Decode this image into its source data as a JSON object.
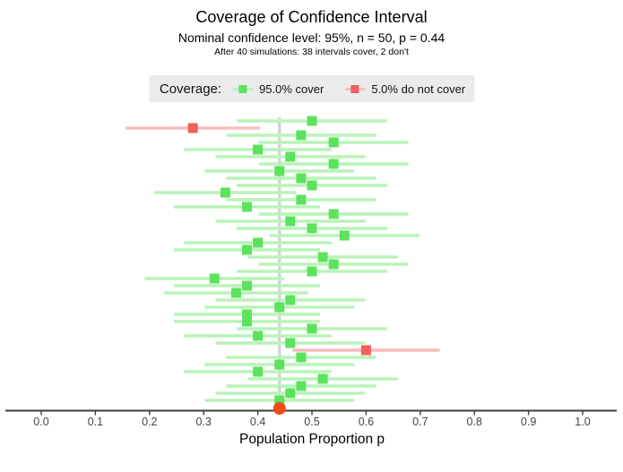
{
  "header": {
    "title": "Coverage of Confidence Interval",
    "subtitle": "Nominal confidence level: 95%, n = 50, p = 0.44",
    "note": "After 40 simulations: 38 intervals cover, 2 don't"
  },
  "legend": {
    "label": "Coverage:",
    "background": "#ebebeb",
    "items": [
      {
        "name": "cover",
        "label": "95.0% cover",
        "point_color": "#5ce25c",
        "line_color": "#b9f3b9"
      },
      {
        "name": "no-cover",
        "label": "5.0% do not cover",
        "point_color": "#f15f5f",
        "line_color": "#f8bcbc"
      }
    ]
  },
  "chart_data": {
    "type": "scatter",
    "description": "40 simulated 95% Wald confidence intervals for a proportion (n = 50, true p = 0.44); square = sample proportion, horizontal segment = confidence interval; 38 intervals cover the true p, 2 do not",
    "title": "Coverage of Confidence Interval",
    "xlabel": "Population Proportion p",
    "true_p": 0.44,
    "n": 50,
    "num_simulations": 40,
    "num_cover": 38,
    "num_miss": 2,
    "xlim": [
      -0.06,
      1.06
    ],
    "x_ticks": [
      0.0,
      0.1,
      0.2,
      0.3,
      0.4,
      0.5,
      0.6,
      0.7,
      0.8,
      0.9,
      1.0
    ],
    "x_tick_labels": [
      "0.0",
      "0.1",
      "0.2",
      "0.3",
      "0.4",
      "0.5",
      "0.6",
      "0.7",
      "0.8",
      "0.9",
      "1.0"
    ],
    "grid": false,
    "legend_position": "top-center",
    "intervals": [
      {
        "p_hat": 0.5,
        "lower": 0.361,
        "upper": 0.639,
        "cover": true
      },
      {
        "p_hat": 0.28,
        "lower": 0.156,
        "upper": 0.404,
        "cover": false
      },
      {
        "p_hat": 0.48,
        "lower": 0.342,
        "upper": 0.618,
        "cover": true
      },
      {
        "p_hat": 0.54,
        "lower": 0.402,
        "upper": 0.678,
        "cover": true
      },
      {
        "p_hat": 0.4,
        "lower": 0.264,
        "upper": 0.536,
        "cover": true
      },
      {
        "p_hat": 0.46,
        "lower": 0.322,
        "upper": 0.598,
        "cover": true
      },
      {
        "p_hat": 0.54,
        "lower": 0.402,
        "upper": 0.678,
        "cover": true
      },
      {
        "p_hat": 0.44,
        "lower": 0.302,
        "upper": 0.578,
        "cover": true
      },
      {
        "p_hat": 0.48,
        "lower": 0.342,
        "upper": 0.618,
        "cover": true
      },
      {
        "p_hat": 0.5,
        "lower": 0.361,
        "upper": 0.639,
        "cover": true
      },
      {
        "p_hat": 0.34,
        "lower": 0.209,
        "upper": 0.471,
        "cover": true
      },
      {
        "p_hat": 0.48,
        "lower": 0.342,
        "upper": 0.618,
        "cover": true
      },
      {
        "p_hat": 0.38,
        "lower": 0.245,
        "upper": 0.515,
        "cover": true
      },
      {
        "p_hat": 0.54,
        "lower": 0.402,
        "upper": 0.678,
        "cover": true
      },
      {
        "p_hat": 0.46,
        "lower": 0.322,
        "upper": 0.598,
        "cover": true
      },
      {
        "p_hat": 0.5,
        "lower": 0.361,
        "upper": 0.639,
        "cover": true
      },
      {
        "p_hat": 0.56,
        "lower": 0.422,
        "upper": 0.698,
        "cover": true
      },
      {
        "p_hat": 0.4,
        "lower": 0.264,
        "upper": 0.536,
        "cover": true
      },
      {
        "p_hat": 0.38,
        "lower": 0.245,
        "upper": 0.515,
        "cover": true
      },
      {
        "p_hat": 0.52,
        "lower": 0.382,
        "upper": 0.658,
        "cover": true
      },
      {
        "p_hat": 0.54,
        "lower": 0.402,
        "upper": 0.678,
        "cover": true
      },
      {
        "p_hat": 0.5,
        "lower": 0.361,
        "upper": 0.639,
        "cover": true
      },
      {
        "p_hat": 0.32,
        "lower": 0.191,
        "upper": 0.449,
        "cover": true
      },
      {
        "p_hat": 0.38,
        "lower": 0.245,
        "upper": 0.515,
        "cover": true
      },
      {
        "p_hat": 0.36,
        "lower": 0.227,
        "upper": 0.493,
        "cover": true
      },
      {
        "p_hat": 0.46,
        "lower": 0.322,
        "upper": 0.598,
        "cover": true
      },
      {
        "p_hat": 0.44,
        "lower": 0.302,
        "upper": 0.578,
        "cover": true
      },
      {
        "p_hat": 0.38,
        "lower": 0.245,
        "upper": 0.515,
        "cover": true
      },
      {
        "p_hat": 0.38,
        "lower": 0.245,
        "upper": 0.515,
        "cover": true
      },
      {
        "p_hat": 0.5,
        "lower": 0.361,
        "upper": 0.639,
        "cover": true
      },
      {
        "p_hat": 0.4,
        "lower": 0.264,
        "upper": 0.536,
        "cover": true
      },
      {
        "p_hat": 0.46,
        "lower": 0.322,
        "upper": 0.598,
        "cover": true
      },
      {
        "p_hat": 0.6,
        "lower": 0.464,
        "upper": 0.736,
        "cover": false
      },
      {
        "p_hat": 0.48,
        "lower": 0.342,
        "upper": 0.618,
        "cover": true
      },
      {
        "p_hat": 0.44,
        "lower": 0.302,
        "upper": 0.578,
        "cover": true
      },
      {
        "p_hat": 0.4,
        "lower": 0.264,
        "upper": 0.536,
        "cover": true
      },
      {
        "p_hat": 0.52,
        "lower": 0.382,
        "upper": 0.658,
        "cover": true
      },
      {
        "p_hat": 0.48,
        "lower": 0.342,
        "upper": 0.618,
        "cover": true
      },
      {
        "p_hat": 0.46,
        "lower": 0.322,
        "upper": 0.598,
        "cover": true
      },
      {
        "p_hat": 0.44,
        "lower": 0.302,
        "upper": 0.578,
        "cover": true
      }
    ],
    "colors": {
      "cover_point": "#5ce25c",
      "cover_line": "#b9f3b9",
      "miss_point": "#f15f5f",
      "miss_line": "#f8bcbc",
      "true_p_line": "#d4d4d4",
      "true_p_dot": "#f14a16",
      "axis": "#3d3d3d",
      "tick_label": "#454545",
      "axis_label": "#000000"
    }
  }
}
